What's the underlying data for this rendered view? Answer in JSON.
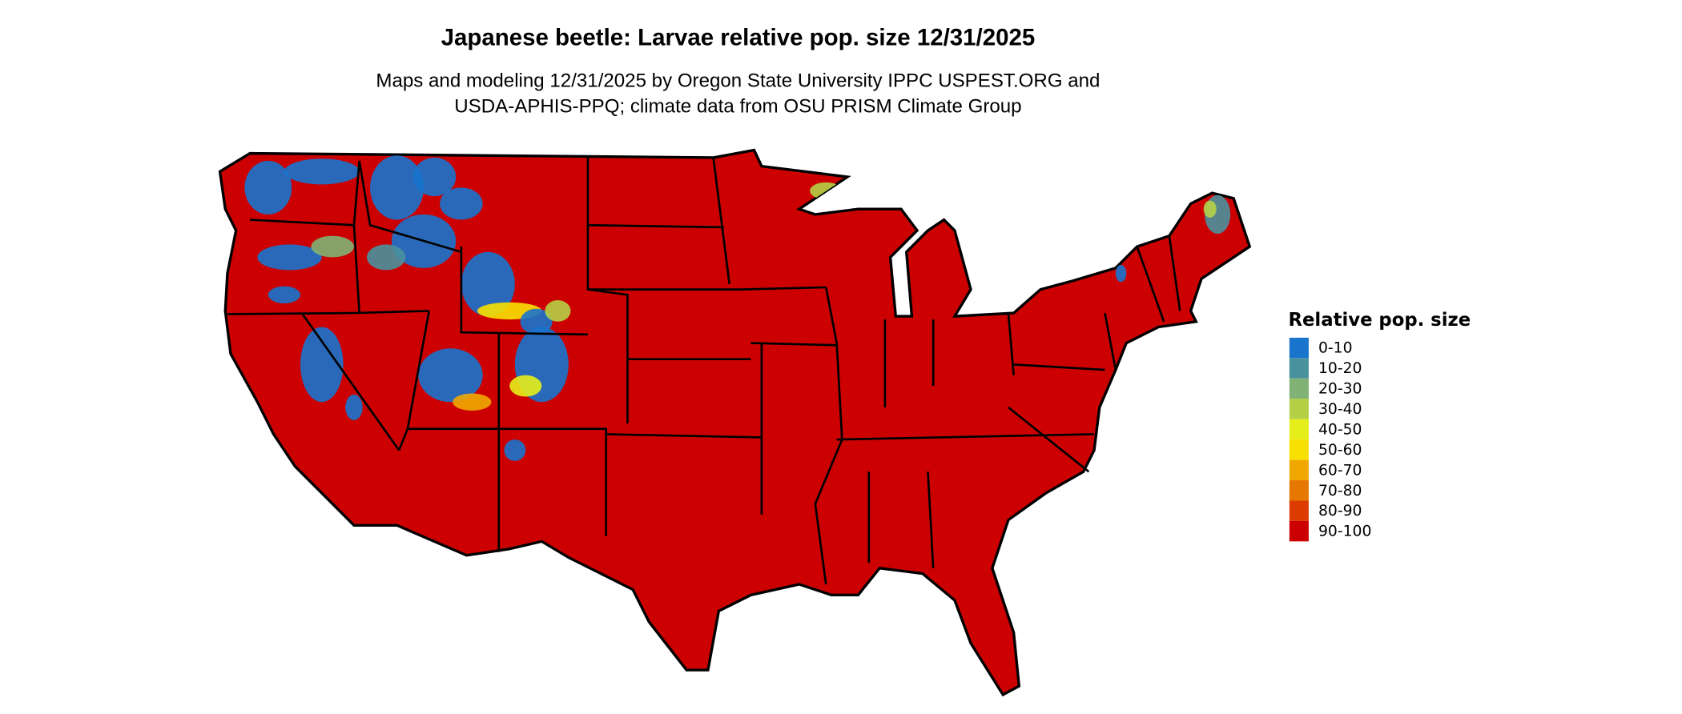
{
  "title": "Japanese beetle: Larvae relative pop. size 12/31/2025",
  "subtitle_line1": "Maps and modeling 12/31/2025 by Oregon State University IPPC USPEST.ORG and",
  "subtitle_line2": "USDA-APHIS-PPQ; climate data from OSU PRISM Climate Group",
  "map": {
    "region": "Contiguous United States",
    "dominant_class": "90-100",
    "low_value_areas": [
      "Washington",
      "Oregon",
      "Idaho",
      "Montana",
      "Wyoming",
      "Colorado",
      "Utah",
      "Nevada",
      "California",
      "Arizona",
      "New Mexico",
      "Northern Maine",
      "Upper Michigan"
    ],
    "border_color": "#000000"
  },
  "legend": {
    "title": "Relative pop. size",
    "items": [
      {
        "label": "0-10",
        "color": "#1874CD"
      },
      {
        "label": "10-20",
        "color": "#4A919E"
      },
      {
        "label": "20-30",
        "color": "#7FB274"
      },
      {
        "label": "30-40",
        "color": "#B5D046"
      },
      {
        "label": "40-50",
        "color": "#E5EE1A"
      },
      {
        "label": "50-60",
        "color": "#F8E000"
      },
      {
        "label": "60-70",
        "color": "#F0A800"
      },
      {
        "label": "70-80",
        "color": "#E67800"
      },
      {
        "label": "80-90",
        "color": "#DC3C00"
      },
      {
        "label": "90-100",
        "color": "#CC0000"
      }
    ]
  }
}
